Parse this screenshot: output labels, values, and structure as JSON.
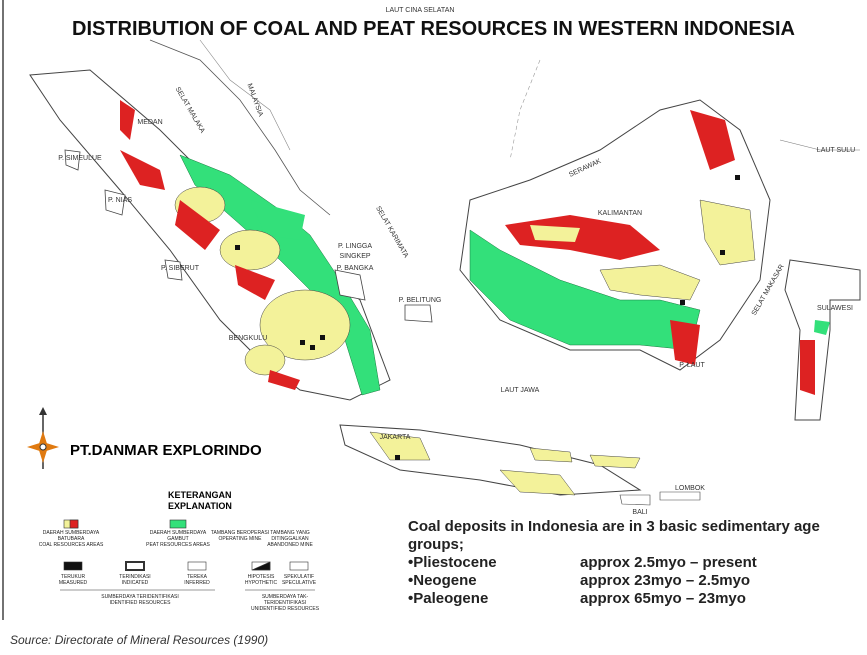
{
  "title": "DISTRIBUTION OF COAL AND PEAT RESOURCES IN WESTERN INDONESIA",
  "company": "PT.DANMAR EXPLORINDO",
  "map_labels": [
    "LAUT CINA SELATAN",
    "MALAYSIA",
    "SELAT MALAKA",
    "SERAWAK",
    "KALIMANTAN",
    "SELAT KARIMATA",
    "SULAWESI",
    "SELAT MAKASAR",
    "LAUT JAWA",
    "JAKARTA",
    "P. BELITUNG",
    "P. BANGKA",
    "P. SIMEULUE",
    "P. NIAS",
    "P. SIBERUT",
    "MEDAN",
    "BENGKULU",
    "BALI",
    "LOMBOK",
    "P. LAUT",
    "P. LINGGA",
    "SINGKEP",
    "LAUT SULU"
  ],
  "legend": {
    "heading": [
      "KETERANGAN",
      "EXPLANATION"
    ],
    "items": [
      [
        "DAERAH SUMBERDAYA BATUBARA",
        "COAL RESOURCES AREAS"
      ],
      [
        "DAERAH SUMBERDAYA GAMBUT",
        "PEAT RESOURCES AREAS"
      ],
      [
        "TAMBANG BEROPERASI",
        "OPERATING MINE"
      ],
      [
        "TAMBANG YANG DITINGGALKAN",
        "ABANDONED MINE"
      ],
      [
        "TERUKUR",
        "MEASURED"
      ],
      [
        "TERINDIKASI",
        "INDICATED"
      ],
      [
        "TEREKA",
        "INFERRED"
      ],
      [
        "HIPOTESIS",
        "HYPOTHETIC"
      ],
      [
        "SPEKULATIF",
        "SPECULATIVE"
      ]
    ],
    "groups": [
      [
        "SUMBERDAYA TERIDENTIFIKASI",
        "IDENTIFIED RESOURCES"
      ],
      [
        "SUMBERDAYA TAK-TERIDENTIFIKASI",
        "UNIDENTIFIED RESOURCES"
      ]
    ]
  },
  "notes": {
    "intro": "Coal deposits in Indonesia are in 3 basic sedimentary age groups;",
    "rows": [
      [
        "•Pliestocene",
        "approx 2.5myo – present"
      ],
      [
        "•Neogene",
        "approx 23myo – 2.5myo"
      ],
      [
        "•Paleogene",
        "approx 65myo – 23myo"
      ]
    ]
  },
  "source": "Source: Directorate of Mineral Resources (1990)"
}
